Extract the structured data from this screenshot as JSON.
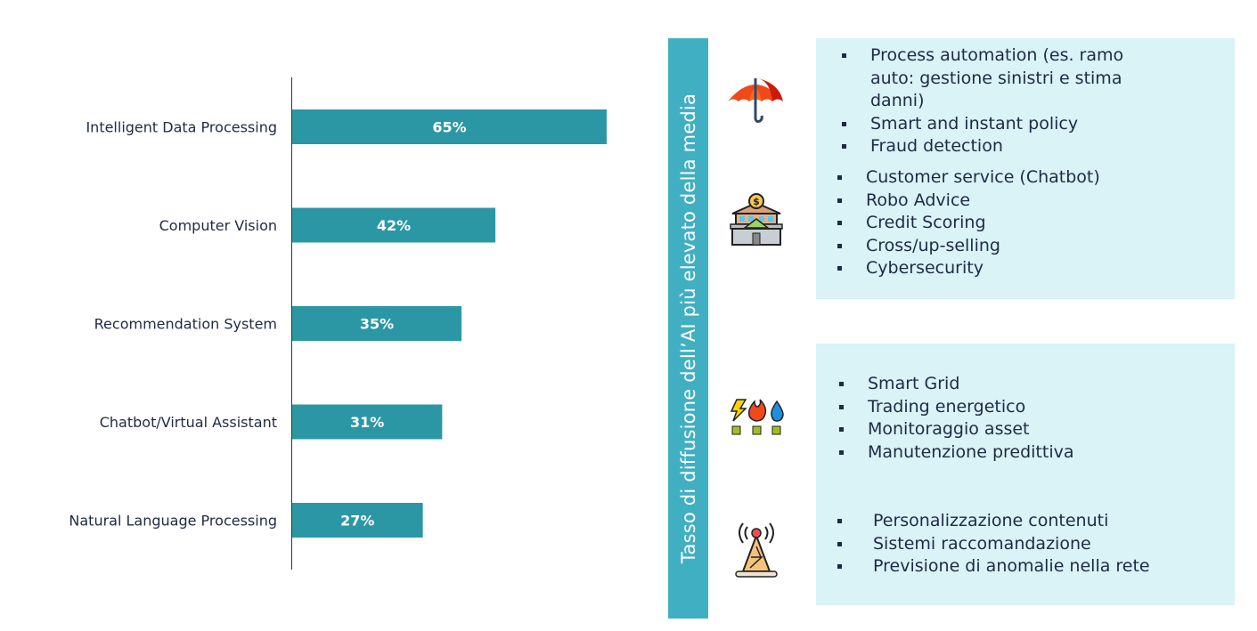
{
  "chart_data": {
    "type": "bar",
    "orientation": "horizontal",
    "categories": [
      "Intelligent Data Processing",
      "Computer Vision",
      "Recommendation System",
      "Chatbot/Virtual Assistant",
      "Natural Language Processing"
    ],
    "values": [
      65,
      42,
      35,
      31,
      27
    ],
    "labels": [
      "65%",
      "42%",
      "35%",
      "31%",
      "27%"
    ],
    "xlim": [
      0,
      65
    ],
    "bar_color": "#2b97a4",
    "grid": false
  },
  "banner": {
    "text": "Tasso di diffusione dell’AI più elevato della media",
    "color": "#41afc2"
  },
  "sectors": [
    {
      "icon": "umbrella-icon",
      "items": [
        "Process automation (es. ramo auto: gestione sinistri e stima danni)",
        "Smart and instant policy",
        "Fraud detection"
      ]
    },
    {
      "icon": "bank-icon",
      "items": [
        "Customer service (Chatbot)",
        "Robo Advice",
        "Credit Scoring",
        "Cross/up-selling",
        "Cybersecurity"
      ]
    },
    {
      "icon": "energy-utilities-icon",
      "items": [
        "Smart Grid",
        "Trading energetico",
        "Monitoraggio asset",
        "Manutenzione predittiva"
      ]
    },
    {
      "icon": "antenna-tower-icon",
      "items": [
        "Personalizzazione contenuti",
        "Sistemi raccomandazione",
        "Previsione di anomalie nella rete"
      ]
    }
  ]
}
